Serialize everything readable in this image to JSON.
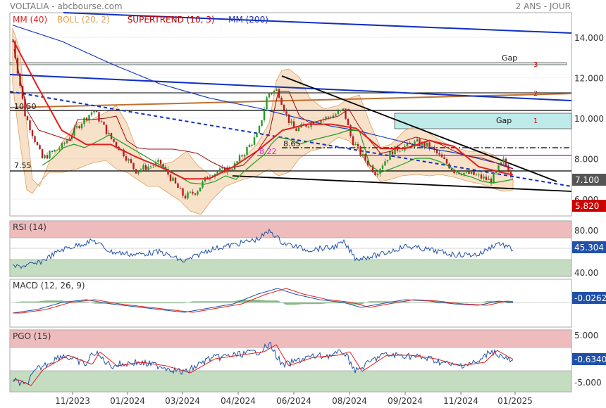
{
  "header": {
    "title": "VOLTALIA - abcbourse.com",
    "period": "2 ANS - JOUR"
  },
  "legend": [
    {
      "label": "MM (40)",
      "color": "#e02020"
    },
    {
      "label": "BOLL (20, 2)",
      "color": "#e8a050"
    },
    {
      "label": "SUPERTREND (10, 3)",
      "color": "#c00000"
    },
    {
      "label": "MM (200)",
      "color": "#2030c0"
    }
  ],
  "annotations": {
    "gap1": "Gap",
    "gap1_num": "1",
    "gap3": "Gap",
    "gap3_num": "3",
    "line2_num": "2",
    "lvl_1050": "10.50",
    "lvl_755": "7.55",
    "lvl_865": "8.65",
    "lvl_822": "8.22"
  },
  "price_tags": {
    "last": "7.100",
    "last_color": "#555555",
    "stop": "5.820",
    "stop_color": "#cc0000"
  },
  "panels": {
    "rsi": {
      "label": "RSI (14)",
      "value": "45.304",
      "ticks": [
        "80.00",
        "40.00"
      ]
    },
    "macd": {
      "label": "MACD (12, 26, 9)",
      "value": "-0.0262"
    },
    "pgo": {
      "label": "PGO (15)",
      "value": "-0.6340",
      "ticks": [
        "5.000",
        "-5.000"
      ]
    }
  },
  "chart_data": {
    "type": "line",
    "title": "VOLTALIA - abcbourse.com",
    "y_ticks": [
      "14.000",
      "12.000",
      "10.000",
      "8.000",
      "6.000"
    ],
    "x_ticks": [
      "11/2023",
      "01/2024",
      "03/2024",
      "04/2024",
      "06/2024",
      "08/2024",
      "09/2024",
      "11/2024",
      "01/2025"
    ],
    "ylim": [
      5.6,
      14.8
    ],
    "price_series": [
      {
        "m": 0,
        "v": 13.8
      },
      {
        "m": 0.5,
        "v": 10.2
      },
      {
        "m": 1.2,
        "v": 8.0
      },
      {
        "m": 2,
        "v": 8.6
      },
      {
        "m": 2.8,
        "v": 9.8
      },
      {
        "m": 3.3,
        "v": 10.4
      },
      {
        "m": 4,
        "v": 9.0
      },
      {
        "m": 4.5,
        "v": 8.3
      },
      {
        "m": 5,
        "v": 7.4
      },
      {
        "m": 6,
        "v": 7.8
      },
      {
        "m": 7,
        "v": 6.1
      },
      {
        "m": 7.5,
        "v": 6.4
      },
      {
        "m": 8,
        "v": 7.2
      },
      {
        "m": 9,
        "v": 7.6
      },
      {
        "m": 10,
        "v": 9.2
      },
      {
        "m": 10.4,
        "v": 11.2
      },
      {
        "m": 10.8,
        "v": 11.4
      },
      {
        "m": 11.2,
        "v": 10.0
      },
      {
        "m": 11.5,
        "v": 9.4
      },
      {
        "m": 12.2,
        "v": 9.8
      },
      {
        "m": 13,
        "v": 10.1
      },
      {
        "m": 13.5,
        "v": 10.4
      },
      {
        "m": 13.8,
        "v": 9.0
      },
      {
        "m": 14.2,
        "v": 8.2
      },
      {
        "m": 14.8,
        "v": 7.3
      },
      {
        "m": 15.5,
        "v": 8.4
      },
      {
        "m": 16.5,
        "v": 8.8
      },
      {
        "m": 17,
        "v": 8.6
      },
      {
        "m": 17.5,
        "v": 8.0
      },
      {
        "m": 18,
        "v": 7.4
      },
      {
        "m": 18.8,
        "v": 7.2
      },
      {
        "m": 19.5,
        "v": 6.9
      },
      {
        "m": 20,
        "v": 7.9
      },
      {
        "m": 20.4,
        "v": 7.1
      }
    ],
    "series": [
      {
        "name": "MM (40)",
        "values": [
          {
            "m": 0,
            "v": 13.9
          },
          {
            "m": 1,
            "v": 11.6
          },
          {
            "m": 2,
            "v": 9.4
          },
          {
            "m": 3,
            "v": 8.7
          },
          {
            "m": 4,
            "v": 8.7
          },
          {
            "m": 5,
            "v": 8.1
          },
          {
            "m": 6,
            "v": 7.6
          },
          {
            "m": 7,
            "v": 7.0
          },
          {
            "m": 8,
            "v": 7.0
          },
          {
            "m": 9,
            "v": 7.6
          },
          {
            "m": 10,
            "v": 8.4
          },
          {
            "m": 11,
            "v": 9.4
          },
          {
            "m": 12,
            "v": 9.7
          },
          {
            "m": 13,
            "v": 9.7
          },
          {
            "m": 14,
            "v": 9.5
          },
          {
            "m": 15,
            "v": 8.5
          },
          {
            "m": 16,
            "v": 8.5
          },
          {
            "m": 17,
            "v": 8.9
          },
          {
            "m": 18,
            "v": 8.6
          },
          {
            "m": 19,
            "v": 7.6
          },
          {
            "m": 20,
            "v": 7.3
          },
          {
            "m": 20.4,
            "v": 7.2
          }
        ]
      },
      {
        "name": "MM (200)",
        "values": [
          {
            "m": 0,
            "v": 14.6
          },
          {
            "m": 2,
            "v": 13.8
          },
          {
            "m": 4,
            "v": 12.7
          },
          {
            "m": 6,
            "v": 11.7
          },
          {
            "m": 8,
            "v": 11.0
          },
          {
            "m": 10,
            "v": 10.5
          },
          {
            "m": 11,
            "v": 10.2
          },
          {
            "m": 13,
            "v": 9.6
          },
          {
            "m": 14,
            "v": 9.4
          },
          {
            "m": 15,
            "v": 9.1
          },
          {
            "m": 16,
            "v": 8.8
          },
          {
            "m": 17,
            "v": 8.5
          },
          {
            "m": 18,
            "v": 8.3
          },
          {
            "m": 19,
            "v": 8.0
          },
          {
            "m": 20,
            "v": 7.7
          },
          {
            "m": 20.4,
            "v": 7.5
          }
        ]
      }
    ],
    "grid": true,
    "legend_position": "top-left"
  }
}
